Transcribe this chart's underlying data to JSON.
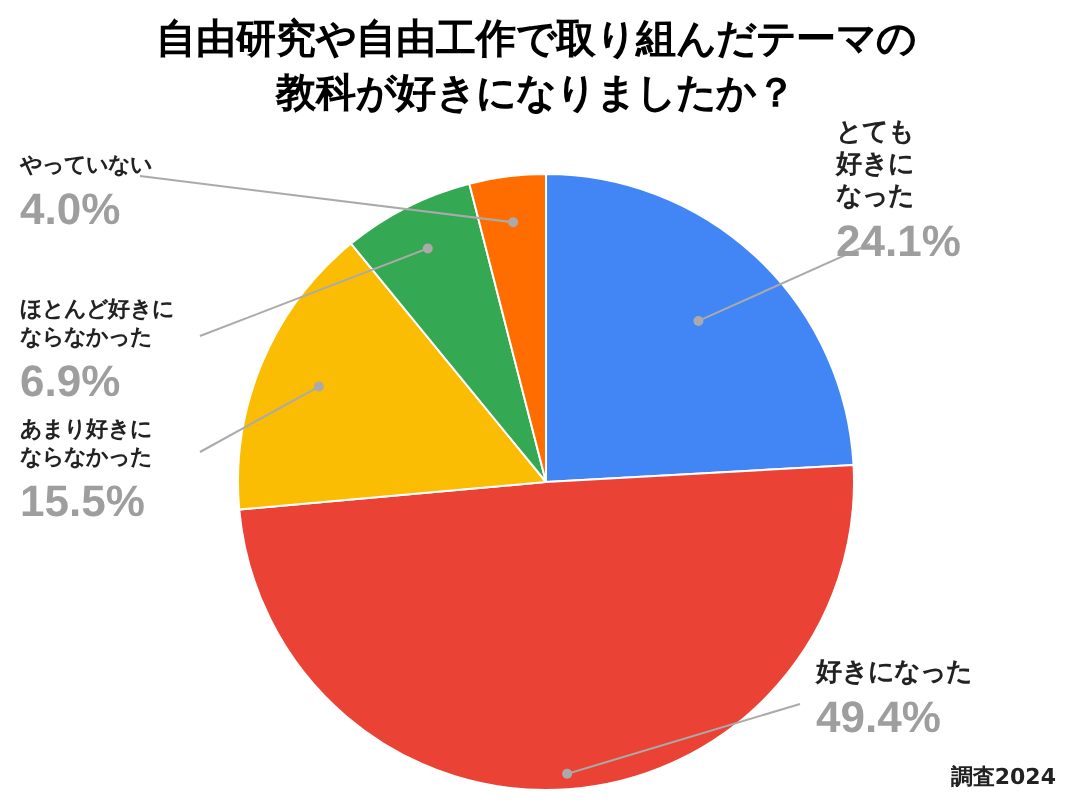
{
  "chart_data": {
    "type": "pie",
    "title": "自由研究や自由工作で取り組んだテーマの教科が好きになりましたか？",
    "categories": [
      "とても好きになった",
      "好きになった",
      "あまり好きにならなかった",
      "ほとんど好きにならなかった",
      "やっていない"
    ],
    "values": [
      24.1,
      49.4,
      15.5,
      6.9,
      4.0
    ],
    "value_labels": [
      "24.1%",
      "49.4%",
      "15.5%",
      "6.9%",
      "4.0%"
    ],
    "colors": [
      "#4285f4",
      "#ea4335",
      "#fbbc04",
      "#34a853",
      "#ff6d01"
    ],
    "annotations": [
      "調査2024"
    ]
  }
}
